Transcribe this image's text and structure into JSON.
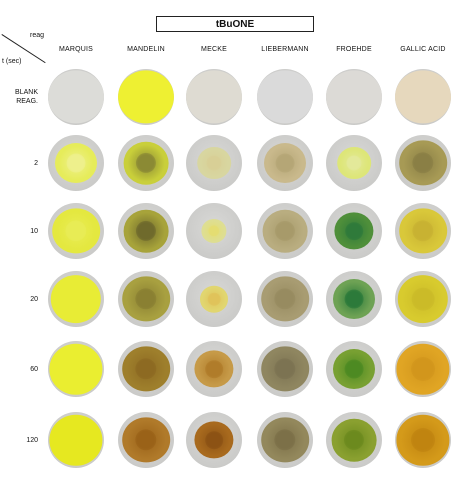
{
  "title": "tBuONE",
  "corner": {
    "top_label": "reag",
    "bottom_label": "t (sec)"
  },
  "columns": [
    "MARQUIS",
    "MANDELIN",
    "MECKE",
    "LIEBERMANN",
    "FROEHDE",
    "GALLIC ACID"
  ],
  "rows": [
    {
      "label": "BLANK\nREAG.",
      "cells": [
        {
          "stain": "#dcdcd8",
          "core": "#dcdcd8",
          "size": 1.0
        },
        {
          "stain": "#eef032",
          "core": "#eef032",
          "size": 1.0
        },
        {
          "stain": "#dedbd2",
          "core": "#dedbd2",
          "size": 1.0
        },
        {
          "stain": "#dadada",
          "core": "#dadada",
          "size": 1.0
        },
        {
          "stain": "#dcdad6",
          "core": "#dcdad6",
          "size": 1.0
        },
        {
          "stain": "#e6d8bd",
          "core": "#e6d8bd",
          "size": 1.0
        }
      ]
    },
    {
      "label": "2",
      "cells": [
        {
          "stain": "#e6ec5a",
          "core": "#eef08c",
          "size": 0.75
        },
        {
          "stain": "#c9cf3a",
          "core": "#8b8a34",
          "size": 0.8
        },
        {
          "stain": "#d8d6a0",
          "core": "#d8cf96",
          "size": 0.6
        },
        {
          "stain": "#c9b98c",
          "core": "#b5a676",
          "size": 0.75
        },
        {
          "stain": "#dde678",
          "core": "#e3e99a",
          "size": 0.6
        },
        {
          "stain": "#a79a55",
          "core": "#8a7f45",
          "size": 0.85
        }
      ]
    },
    {
      "label": "10",
      "cells": [
        {
          "stain": "#e4e83f",
          "core": "#e8ec55",
          "size": 0.85
        },
        {
          "stain": "#a7a33a",
          "core": "#6f6a2c",
          "size": 0.8
        },
        {
          "stain": "#dede92",
          "core": "#e4dd72",
          "size": 0.45
        },
        {
          "stain": "#b9ad80",
          "core": "#a79a6a",
          "size": 0.8
        },
        {
          "stain": "#4f8f3a",
          "core": "#2f7a3a",
          "size": 0.7
        },
        {
          "stain": "#d9c83a",
          "core": "#c8b232",
          "size": 0.85
        }
      ]
    },
    {
      "label": "20",
      "cells": [
        {
          "stain": "#e8ec35",
          "core": "#e8ec35",
          "size": 0.9
        },
        {
          "stain": "#a8a040",
          "core": "#8a8032",
          "size": 0.85
        },
        {
          "stain": "#e1d670",
          "core": "#e0c35a",
          "size": 0.5
        },
        {
          "stain": "#a89c72",
          "core": "#978b60",
          "size": 0.85
        },
        {
          "stain": "#6ea254",
          "core": "#2c7a3a",
          "size": 0.75
        },
        {
          "stain": "#d8cb2e",
          "core": "#cbbb28",
          "size": 0.9
        }
      ]
    },
    {
      "label": "60",
      "cells": [
        {
          "stain": "#eaee30",
          "core": "#eaee30",
          "size": 0.95
        },
        {
          "stain": "#9e7f2c",
          "core": "#8d6a22",
          "size": 0.85
        },
        {
          "stain": "#c69a48",
          "core": "#b07c2a",
          "size": 0.7
        },
        {
          "stain": "#8f8660",
          "core": "#7c7352",
          "size": 0.85
        },
        {
          "stain": "#78a032",
          "core": "#4d8a22",
          "size": 0.75
        },
        {
          "stain": "#e0a524",
          "core": "#d2961c",
          "size": 0.95
        }
      ]
    },
    {
      "label": "120",
      "cells": [
        {
          "stain": "#e6e820",
          "core": "#e6e820",
          "size": 0.95
        },
        {
          "stain": "#b07a2a",
          "core": "#9a6218",
          "size": 0.85
        },
        {
          "stain": "#a86a1e",
          "core": "#8c5214",
          "size": 0.7
        },
        {
          "stain": "#93885c",
          "core": "#7c7048",
          "size": 0.85
        },
        {
          "stain": "#8aa030",
          "core": "#6c8a1e",
          "size": 0.8
        },
        {
          "stain": "#d49a1a",
          "core": "#c08410",
          "size": 0.95
        }
      ]
    }
  ]
}
